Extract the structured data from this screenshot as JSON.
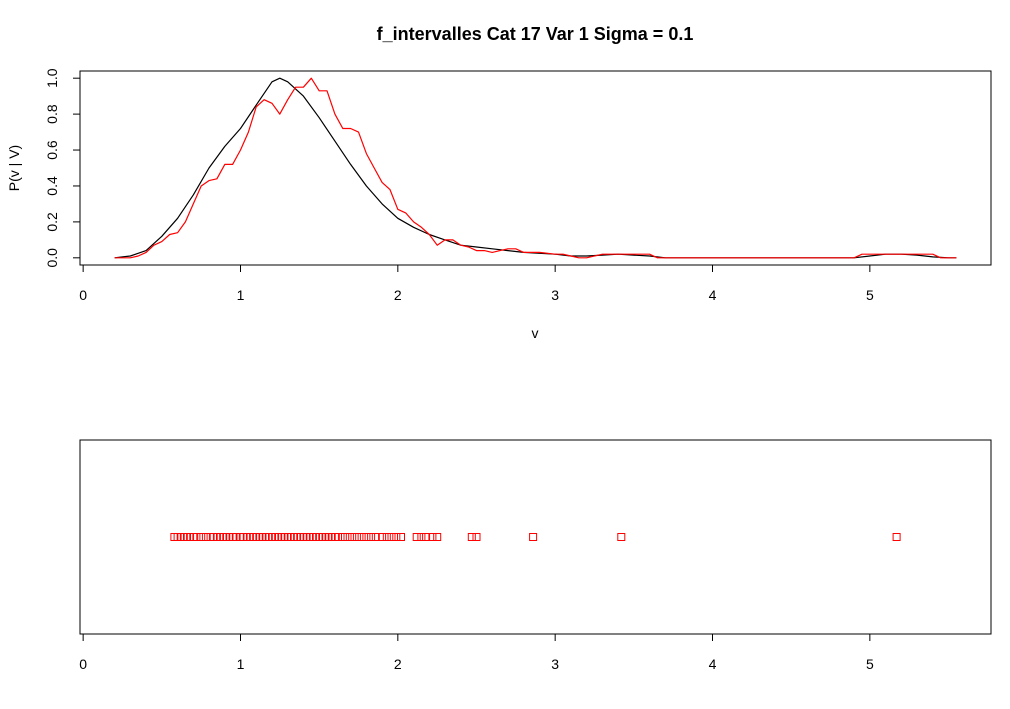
{
  "chart_data": [
    {
      "type": "line",
      "title": "f_intervalles Cat 17 Var 1  Sigma = 0.1",
      "xlabel": "v",
      "ylabel": "P(v | V)",
      "xlim": [
        -0.02,
        5.77
      ],
      "ylim": [
        -0.04,
        1.04
      ],
      "x_ticks": [
        "0",
        "1",
        "2",
        "3",
        "4",
        "5"
      ],
      "y_ticks": [
        "0.0",
        "0.2",
        "0.4",
        "0.6",
        "0.8",
        "1.0"
      ],
      "grid": false,
      "legend": "none",
      "series": [
        {
          "color": "#000000",
          "points": [
            [
              0.2,
              0.0
            ],
            [
              0.3,
              0.01
            ],
            [
              0.4,
              0.04
            ],
            [
              0.5,
              0.12
            ],
            [
              0.6,
              0.22
            ],
            [
              0.7,
              0.35
            ],
            [
              0.8,
              0.5
            ],
            [
              0.9,
              0.62
            ],
            [
              1.0,
              0.72
            ],
            [
              1.1,
              0.85
            ],
            [
              1.2,
              0.98
            ],
            [
              1.25,
              1.0
            ],
            [
              1.3,
              0.98
            ],
            [
              1.4,
              0.9
            ],
            [
              1.5,
              0.78
            ],
            [
              1.6,
              0.65
            ],
            [
              1.7,
              0.52
            ],
            [
              1.8,
              0.4
            ],
            [
              1.9,
              0.3
            ],
            [
              2.0,
              0.22
            ],
            [
              2.1,
              0.17
            ],
            [
              2.2,
              0.13
            ],
            [
              2.3,
              0.1
            ],
            [
              2.4,
              0.07
            ],
            [
              2.5,
              0.06
            ],
            [
              2.6,
              0.05
            ],
            [
              2.7,
              0.04
            ],
            [
              2.8,
              0.03
            ],
            [
              2.9,
              0.025
            ],
            [
              3.0,
              0.02
            ],
            [
              3.1,
              0.01
            ],
            [
              3.2,
              0.01
            ],
            [
              3.3,
              0.015
            ],
            [
              3.4,
              0.02
            ],
            [
              3.5,
              0.015
            ],
            [
              3.6,
              0.01
            ],
            [
              3.7,
              0.0
            ],
            [
              4.0,
              0.0
            ],
            [
              4.5,
              0.0
            ],
            [
              4.9,
              0.0
            ],
            [
              5.0,
              0.01
            ],
            [
              5.1,
              0.02
            ],
            [
              5.2,
              0.02
            ],
            [
              5.3,
              0.015
            ],
            [
              5.4,
              0.005
            ],
            [
              5.5,
              0.0
            ],
            [
              5.55,
              0.0
            ]
          ]
        },
        {
          "color": "#ff0000",
          "points": [
            [
              0.2,
              0.0
            ],
            [
              0.3,
              0.0
            ],
            [
              0.35,
              0.01
            ],
            [
              0.4,
              0.03
            ],
            [
              0.45,
              0.07
            ],
            [
              0.5,
              0.09
            ],
            [
              0.55,
              0.13
            ],
            [
              0.6,
              0.14
            ],
            [
              0.65,
              0.2
            ],
            [
              0.7,
              0.3
            ],
            [
              0.75,
              0.4
            ],
            [
              0.8,
              0.43
            ],
            [
              0.85,
              0.44
            ],
            [
              0.9,
              0.52
            ],
            [
              0.95,
              0.52
            ],
            [
              1.0,
              0.6
            ],
            [
              1.05,
              0.7
            ],
            [
              1.1,
              0.84
            ],
            [
              1.15,
              0.88
            ],
            [
              1.2,
              0.86
            ],
            [
              1.25,
              0.8
            ],
            [
              1.3,
              0.88
            ],
            [
              1.35,
              0.95
            ],
            [
              1.4,
              0.95
            ],
            [
              1.45,
              1.0
            ],
            [
              1.5,
              0.93
            ],
            [
              1.55,
              0.93
            ],
            [
              1.6,
              0.8
            ],
            [
              1.65,
              0.72
            ],
            [
              1.7,
              0.72
            ],
            [
              1.75,
              0.7
            ],
            [
              1.8,
              0.58
            ],
            [
              1.85,
              0.5
            ],
            [
              1.9,
              0.42
            ],
            [
              1.95,
              0.38
            ],
            [
              2.0,
              0.27
            ],
            [
              2.05,
              0.25
            ],
            [
              2.1,
              0.2
            ],
            [
              2.15,
              0.17
            ],
            [
              2.2,
              0.13
            ],
            [
              2.25,
              0.07
            ],
            [
              2.3,
              0.1
            ],
            [
              2.35,
              0.1
            ],
            [
              2.4,
              0.07
            ],
            [
              2.45,
              0.06
            ],
            [
              2.5,
              0.04
            ],
            [
              2.55,
              0.04
            ],
            [
              2.6,
              0.03
            ],
            [
              2.65,
              0.04
            ],
            [
              2.7,
              0.05
            ],
            [
              2.75,
              0.05
            ],
            [
              2.8,
              0.03
            ],
            [
              2.9,
              0.03
            ],
            [
              3.0,
              0.02
            ],
            [
              3.05,
              0.02
            ],
            [
              3.1,
              0.01
            ],
            [
              3.15,
              0.0
            ],
            [
              3.2,
              0.0
            ],
            [
              3.3,
              0.02
            ],
            [
              3.4,
              0.02
            ],
            [
              3.5,
              0.02
            ],
            [
              3.6,
              0.02
            ],
            [
              3.65,
              0.0
            ],
            [
              3.7,
              0.0
            ],
            [
              4.0,
              0.0
            ],
            [
              4.5,
              0.0
            ],
            [
              4.9,
              0.0
            ],
            [
              4.95,
              0.02
            ],
            [
              5.0,
              0.02
            ],
            [
              5.1,
              0.02
            ],
            [
              5.2,
              0.02
            ],
            [
              5.3,
              0.02
            ],
            [
              5.4,
              0.02
            ],
            [
              5.45,
              0.0
            ],
            [
              5.5,
              0.0
            ],
            [
              5.55,
              0.0
            ]
          ]
        }
      ]
    },
    {
      "type": "scatter",
      "xlim": [
        -0.02,
        5.77
      ],
      "x_ticks": [
        "0",
        "1",
        "2",
        "3",
        "4",
        "5"
      ],
      "grid": false,
      "legend": "none",
      "marker": "open-square",
      "series": [
        {
          "color": "#ff0000",
          "x": [
            0.58,
            0.6,
            0.62,
            0.64,
            0.66,
            0.68,
            0.7,
            0.72,
            0.75,
            0.78,
            0.81,
            0.83,
            0.85,
            0.87,
            0.89,
            0.91,
            0.93,
            0.95,
            0.97,
            1.0,
            1.02,
            1.04,
            1.06,
            1.08,
            1.1,
            1.12,
            1.14,
            1.16,
            1.18,
            1.2,
            1.22,
            1.24,
            1.26,
            1.28,
            1.3,
            1.32,
            1.34,
            1.36,
            1.38,
            1.4,
            1.42,
            1.44,
            1.46,
            1.48,
            1.5,
            1.52,
            1.54,
            1.56,
            1.58,
            1.6,
            1.62,
            1.65,
            1.68,
            1.71,
            1.74,
            1.77,
            1.8,
            1.83,
            1.86,
            1.9,
            1.93,
            1.96,
            1.99,
            2.02,
            2.12,
            2.15,
            2.18,
            2.22,
            2.25,
            2.47,
            2.5,
            2.86,
            3.42,
            5.17
          ]
        }
      ]
    }
  ]
}
